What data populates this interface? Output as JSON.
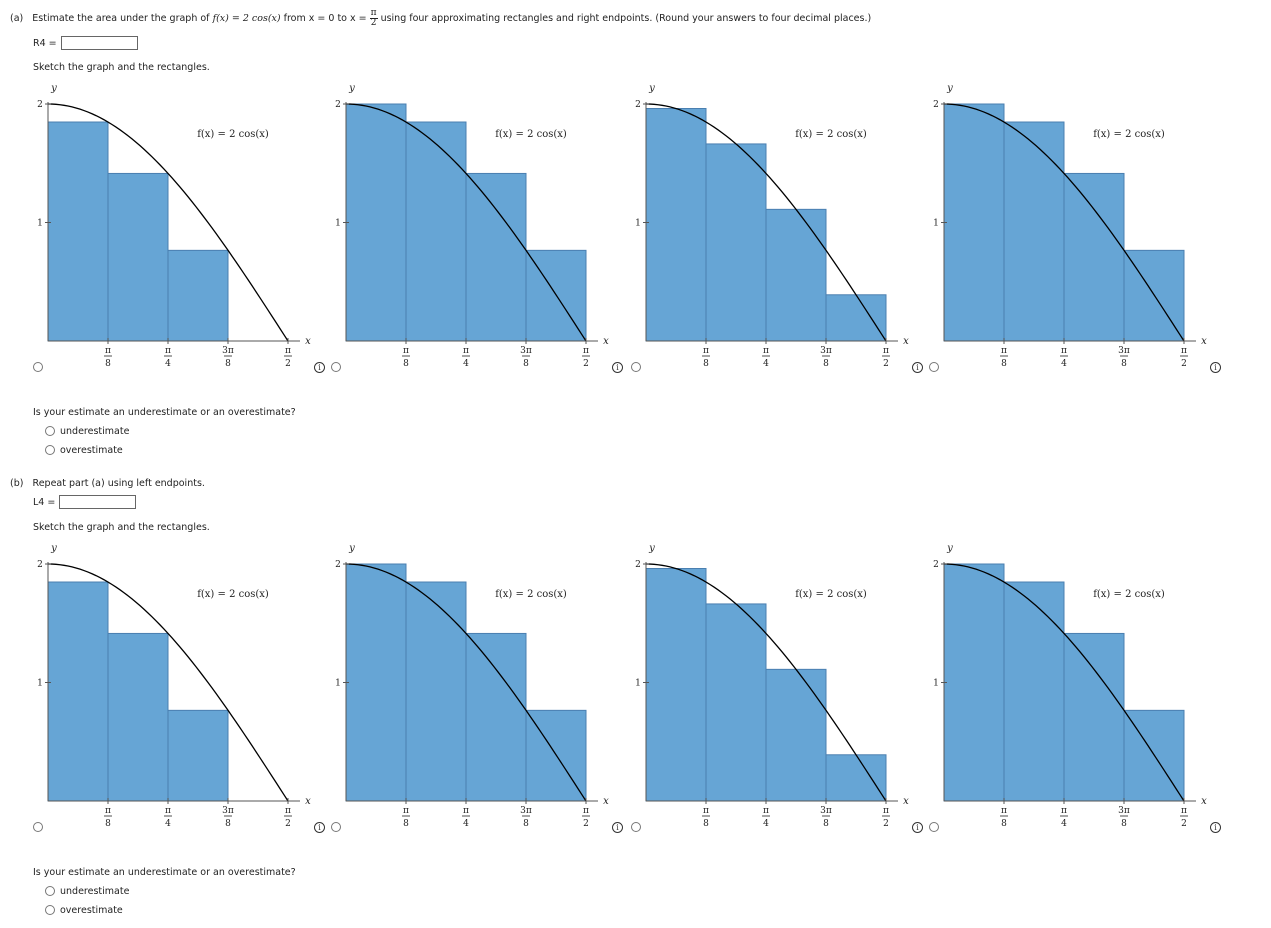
{
  "part_a": {
    "label": "(a)",
    "prompt_before": "Estimate the area under the graph of ",
    "func_text": "f(x) = 2 cos(x)",
    "prompt_from": " from x = 0 to x = ",
    "upper_num": "π",
    "upper_den": "2",
    "prompt_after": " using four approximating rectangles and right endpoints. (Round your answers to four decimal places.)",
    "answer_label": "R4 =",
    "answer_value": "",
    "sketch_label": "Sketch the graph and the rectangles.",
    "question": "Is your estimate an underestimate or an overestimate?",
    "options": [
      "underestimate",
      "overestimate"
    ],
    "graphs": [
      {
        "heights": [
          1.848,
          1.414,
          0.765,
          0.0
        ]
      },
      {
        "heights": [
          2.0,
          1.848,
          1.414,
          0.765
        ],
        "shift": 0
      },
      {
        "heights": [
          1.962,
          1.663,
          1.111,
          0.39
        ]
      },
      {
        "heights": [
          2.0,
          1.848,
          1.414,
          0.765
        ],
        "shift": 1
      }
    ]
  },
  "part_b": {
    "label": "(b)",
    "prompt": "Repeat part (a) using left endpoints.",
    "answer_label": "L4 =",
    "answer_value": "",
    "sketch_label": "Sketch the graph and the rectangles.",
    "question": "Is your estimate an underestimate or an overestimate?",
    "options": [
      "underestimate",
      "overestimate"
    ],
    "graphs": [
      {
        "heights": [
          1.848,
          1.414,
          0.765,
          0.0
        ]
      },
      {
        "heights": [
          2.0,
          1.848,
          1.414,
          0.765
        ],
        "shift": 0
      },
      {
        "heights": [
          1.962,
          1.663,
          1.111,
          0.39
        ]
      },
      {
        "heights": [
          2.0,
          1.848,
          1.414,
          0.765
        ],
        "shift": 1
      }
    ]
  },
  "chart_data": {
    "type": "area",
    "function_label": "f(x) = 2 cos(x)",
    "xlabel": "x",
    "ylabel": "y",
    "x_ticks": [
      "π/8",
      "π/4",
      "3π/8",
      "π/2"
    ],
    "y_ticks": [
      "1",
      "2"
    ],
    "xlim": [
      0,
      1.5708
    ],
    "ylim": [
      0,
      2
    ],
    "colors": {
      "rect_fill": "#66a5d5",
      "rect_stroke": "#4a7fb0",
      "curve": "#000000"
    }
  }
}
